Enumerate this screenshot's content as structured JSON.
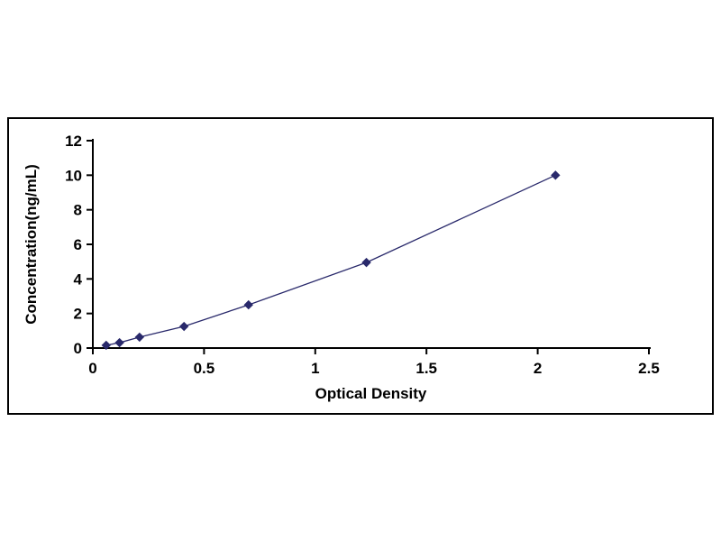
{
  "figure": {
    "background": "#ffffff",
    "border_color": "#000000"
  },
  "chart_data": {
    "type": "line",
    "title": "",
    "xlabel": "Optical Density",
    "ylabel": "Concentration(ng/mL)",
    "x": [
      0.06,
      0.12,
      0.21,
      0.41,
      0.7,
      1.23,
      2.08
    ],
    "y": [
      0.16,
      0.31,
      0.63,
      1.25,
      2.5,
      4.95,
      10.0
    ],
    "xlim": [
      0,
      2.5
    ],
    "ylim": [
      0,
      12
    ],
    "x_ticks": [
      0,
      0.5,
      1,
      1.5,
      2,
      2.5
    ],
    "y_ticks": [
      0,
      2,
      4,
      6,
      8,
      10,
      12
    ],
    "x_tick_labels": [
      "0",
      "0.5",
      "1",
      "1.5",
      "2",
      "2.5"
    ],
    "y_tick_labels": [
      "0",
      "2",
      "4",
      "6",
      "8",
      "10",
      "12"
    ],
    "grid": false,
    "legend": null,
    "marker": "diamond",
    "series_color": "#29296B",
    "axis_color": "#000000"
  }
}
